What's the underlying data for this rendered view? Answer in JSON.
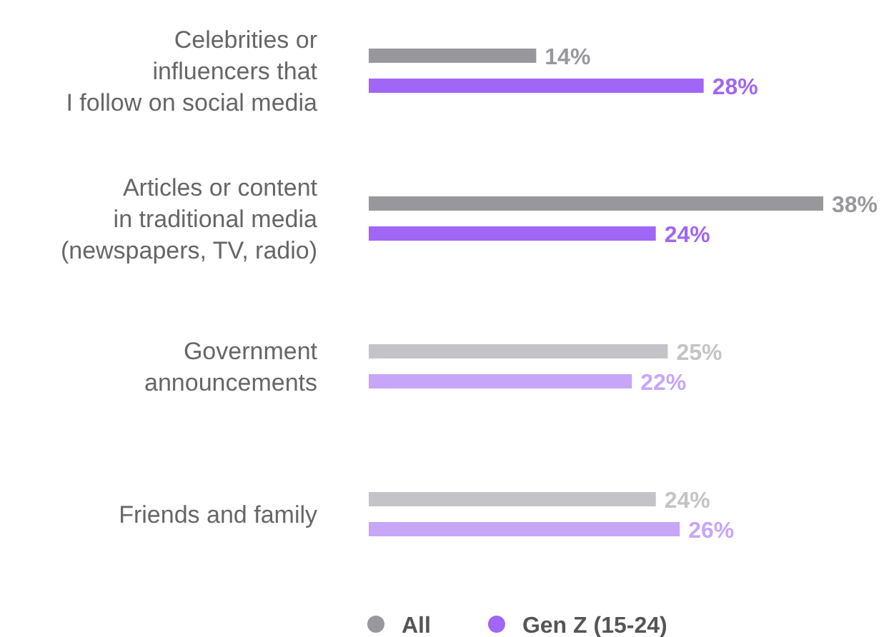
{
  "chart_data": {
    "type": "bar",
    "orientation": "horizontal",
    "categories": [
      "Celebrities or\ninfluencers that\nI follow on social media",
      "Articles or content\nin traditional media\n(newspapers, TV, radio)",
      "Government\nannouncements",
      "Friends and family"
    ],
    "series": [
      {
        "name": "All",
        "color": "#98989c",
        "colors": [
          "#98989c",
          "#98989c",
          "#c4c4c8",
          "#c4c4c8"
        ],
        "values": [
          14,
          38,
          25,
          24
        ],
        "value_labels": [
          "14%",
          "38%",
          "25%",
          "24%"
        ]
      },
      {
        "name": "Gen Z (15-24)",
        "color": "#a066f5",
        "colors": [
          "#a066f5",
          "#a066f5",
          "#c7a6f8",
          "#c7a6f8"
        ],
        "values": [
          28,
          24,
          22,
          26
        ],
        "value_labels": [
          "28%",
          "24%",
          "22%",
          "26%"
        ]
      }
    ],
    "legend": "bottom"
  }
}
